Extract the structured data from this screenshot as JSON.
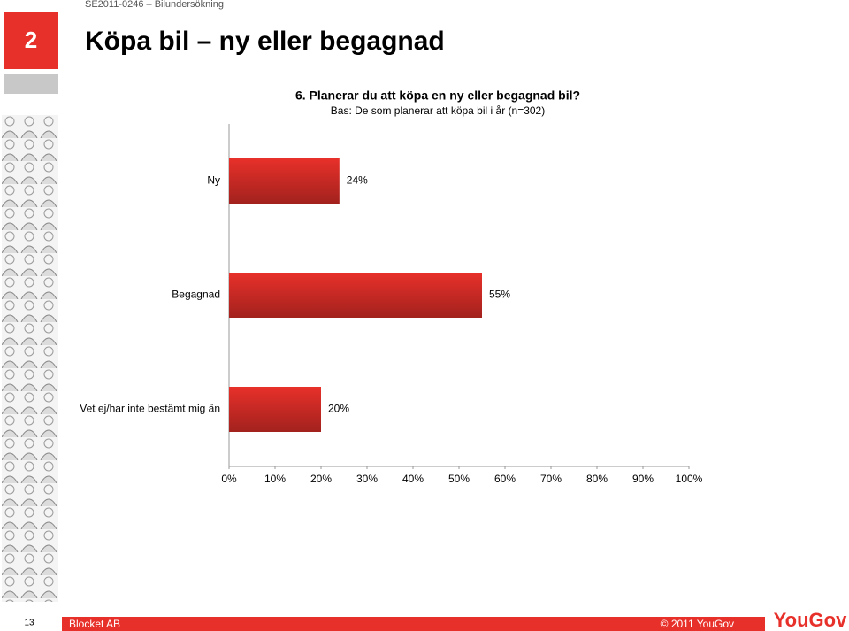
{
  "header": {
    "code": "SE2011-0246 – Bilundersökning",
    "slide_number": "2",
    "title": "Köpa bil – ny eller begagnad"
  },
  "chart_data": {
    "type": "bar",
    "orientation": "horizontal",
    "title": "6. Planerar du att köpa en ny eller begagnad bil?",
    "subtitle": "Bas: De som planerar att köpa bil i år (n=302)",
    "categories": [
      "Ny",
      "Begagnad",
      "Vet ej/har inte bestämt mig än"
    ],
    "values": [
      24,
      55,
      20
    ],
    "value_labels": [
      "24%",
      "55%",
      "20%"
    ],
    "color": "#e8302a",
    "xlim": [
      0,
      100
    ],
    "xticks": [
      {
        "value": 0,
        "label": "0%"
      },
      {
        "value": 10,
        "label": "10%"
      },
      {
        "value": 20,
        "label": "20%"
      },
      {
        "value": 30,
        "label": "30%"
      },
      {
        "value": 40,
        "label": "40%"
      },
      {
        "value": 50,
        "label": "50%"
      },
      {
        "value": 60,
        "label": "60%"
      },
      {
        "value": 70,
        "label": "70%"
      },
      {
        "value": 80,
        "label": "80%"
      },
      {
        "value": 90,
        "label": "90%"
      },
      {
        "value": 100,
        "label": "100%"
      }
    ],
    "grid": false
  },
  "footer": {
    "page": "13",
    "client": "Blocket AB",
    "copyright": "© 2011 YouGov",
    "logo": "YouGov"
  }
}
